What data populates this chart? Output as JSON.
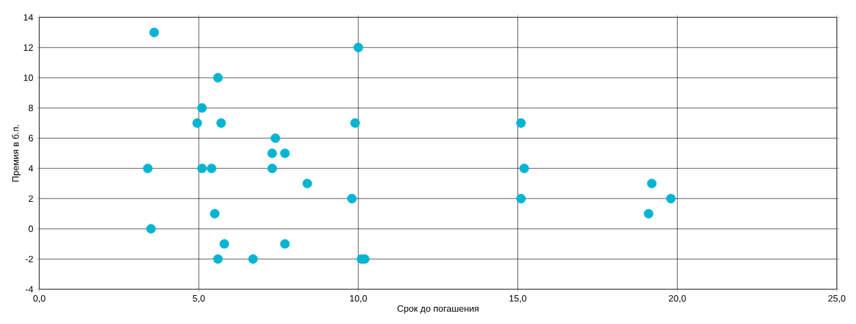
{
  "chart_data": {
    "type": "scatter",
    "xlabel": "Срок до погашения",
    "ylabel": "Премия в б.п.",
    "x": [
      3.6,
      10.0,
      5.6,
      5.1,
      4.95,
      5.7,
      9.9,
      15.1,
      7.4,
      7.3,
      7.7,
      3.4,
      5.1,
      5.4,
      7.3,
      15.2,
      8.4,
      19.2,
      9.8,
      15.1,
      19.8,
      5.5,
      19.1,
      3.5,
      5.8,
      7.7,
      5.6,
      6.7,
      10.1,
      10.2
    ],
    "values": [
      13,
      12,
      10,
      8,
      7,
      7,
      7,
      7,
      6,
      5,
      5,
      4,
      4,
      4,
      4,
      4,
      3,
      3,
      2,
      2,
      2,
      1,
      1,
      0,
      -1,
      -1,
      -2,
      -2,
      -2,
      -2
    ],
    "color": "#00b4d2",
    "marker": "circle",
    "grid": true,
    "xlim": [
      0,
      25
    ],
    "xticks": [
      {
        "value": 0,
        "label": "0,0"
      },
      {
        "value": 5,
        "label": "5,0"
      },
      {
        "value": 10,
        "label": "10,0"
      },
      {
        "value": 15,
        "label": "15,0"
      },
      {
        "value": 20,
        "label": "20,0"
      },
      {
        "value": 25,
        "label": "25,0"
      }
    ],
    "ylim": [
      -4,
      14
    ],
    "yticks": [
      -4,
      -2,
      0,
      2,
      4,
      6,
      8,
      10,
      12,
      14
    ]
  }
}
